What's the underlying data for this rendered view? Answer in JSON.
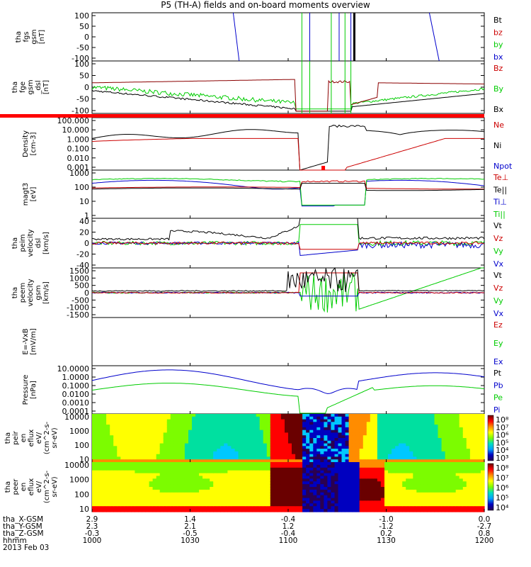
{
  "title": "P5 (TH-A) fields and on-board moments overview",
  "chart_data": [
    {
      "id": "fgs",
      "type": "line",
      "ylabel": [
        "tha",
        "fgs",
        "gsm",
        "[nT]"
      ],
      "ytick_labels": [
        "100",
        "50",
        "0",
        "-50",
        "-100"
      ],
      "ylim": [
        -100,
        100
      ],
      "legend": [
        "Bt",
        "bz",
        "by",
        "bx"
      ],
      "legend_colors": [
        "#000000",
        "#cc0000",
        "#00cc00",
        "#0000cc"
      ]
    },
    {
      "id": "fge",
      "type": "line",
      "ylabel": [
        "tha",
        "fge",
        "gsm",
        "_dsl",
        "[nT]"
      ],
      "ytick_labels": [
        "100",
        "50",
        "0",
        "-50",
        "-100"
      ],
      "ylim": [
        -120,
        120
      ],
      "legend": [
        "Bz",
        "By",
        "Bx"
      ],
      "legend_colors": [
        "#cc0000",
        "#00cc00",
        "#000000"
      ]
    },
    {
      "id": "density",
      "type": "line",
      "scale": "log",
      "ylabel": [
        "Density",
        "[cm-3]"
      ],
      "ytick_labels": [
        "100.000",
        "10.000",
        "1.000",
        "0.100",
        "0.010",
        "0.001"
      ],
      "ylim": [
        0.001,
        300
      ],
      "legend": [
        "Ne",
        "Ni",
        "Npot"
      ],
      "legend_colors": [
        "#cc0000",
        "#000000",
        "#0000cc"
      ]
    },
    {
      "id": "temp",
      "type": "line",
      "scale": "log",
      "ylabel": [
        "magt3",
        "[eV]"
      ],
      "ytick_labels": [
        "1000",
        "100",
        "10",
        "1"
      ],
      "ylim": [
        1,
        2000
      ],
      "legend": [
        "Te⊥",
        "Te||",
        "Ti⊥",
        "Ti||"
      ],
      "legend_colors": [
        "#cc0000",
        "#000000",
        "#0000cc",
        "#00cc00"
      ]
    },
    {
      "id": "peim",
      "type": "line",
      "ylabel": [
        "tha",
        "peim",
        "velocity",
        "dsl",
        "[km/s]"
      ],
      "ytick_labels": [
        "40",
        "20",
        "0",
        "-20",
        "-40"
      ],
      "ylim": [
        -40,
        40
      ],
      "legend": [
        "Vt",
        "Vz",
        "Vy",
        "Vx"
      ],
      "legend_colors": [
        "#000000",
        "#cc0000",
        "#00cc00",
        "#0000cc"
      ]
    },
    {
      "id": "peem",
      "type": "line",
      "ylabel": [
        "tha",
        "peem",
        "velocity",
        "gsm",
        "[km/s]"
      ],
      "ytick_labels": [
        "1500",
        "1000",
        "500",
        "0",
        "-500",
        "-1000",
        "-1500"
      ],
      "ylim": [
        -1500,
        1500
      ],
      "legend": [
        "Vt",
        "Vz",
        "Vy",
        "Vx"
      ],
      "legend_colors": [
        "#000000",
        "#cc0000",
        "#00cc00",
        "#0000cc"
      ]
    },
    {
      "id": "efield",
      "type": "line",
      "ylabel": [
        "E=-VxB",
        "[mV/m]"
      ],
      "ytick_labels": [],
      "ylim": [
        -1,
        1
      ],
      "legend": [
        "Ez",
        "Ey",
        "Ex"
      ],
      "legend_colors": [
        "#cc0000",
        "#00cc00",
        "#0000cc"
      ]
    },
    {
      "id": "pressure",
      "type": "line",
      "scale": "log",
      "ylabel": [
        "Pressure",
        "[nPa]"
      ],
      "ytick_labels": [
        "10.0000",
        "1.0000",
        "0.1000",
        "0.0100",
        "0.0010",
        "0.0001"
      ],
      "ylim": [
        0.0001,
        30
      ],
      "legend": [
        "Pt",
        "Pb",
        "Pe",
        "Pi"
      ],
      "legend_colors": [
        "#000000",
        "#0000cc",
        "#00cc00",
        "#0000cc"
      ]
    },
    {
      "id": "peir",
      "type": "heatmap",
      "ylabel": [
        "tha",
        "peir",
        "en",
        "eflux",
        "eV/",
        "(cm^2-s-",
        "sr-eV)"
      ],
      "ytick_labels": [
        "10000",
        "1000",
        "100",
        "10"
      ],
      "colorbar_labels": [
        "10⁸",
        "10⁷",
        "10⁶",
        "10⁵",
        "10⁴",
        "10³"
      ]
    },
    {
      "id": "peer",
      "type": "heatmap",
      "ylabel": [
        "tha",
        "peer",
        "en",
        "eflux",
        "eV/",
        "(cm^2-s-",
        "sr-eV)"
      ],
      "ytick_labels": [
        "10000",
        "1000",
        "100",
        "10"
      ],
      "colorbar_labels": [
        "10⁸",
        "10⁷",
        "10⁶",
        "10⁵",
        "10⁴"
      ]
    }
  ],
  "xaxis": {
    "rows": [
      {
        "label": "tha_X-GSM",
        "values": [
          "2.9",
          "1.4",
          "-0.4",
          "-1.0",
          "0.0"
        ]
      },
      {
        "label": "tha_Y-GSM",
        "values": [
          "2.3",
          "2.1",
          "1.2",
          "-1.2",
          "-2.7"
        ]
      },
      {
        "label": "tha_Z-GSM",
        "values": [
          "-0.3",
          "-0.5",
          "-0.4",
          "0.2",
          "0.8"
        ]
      },
      {
        "label": "hhmm",
        "values": [
          "1000",
          "1030",
          "1100",
          "1130",
          "1200"
        ]
      }
    ],
    "date": "2013 Feb 03"
  }
}
